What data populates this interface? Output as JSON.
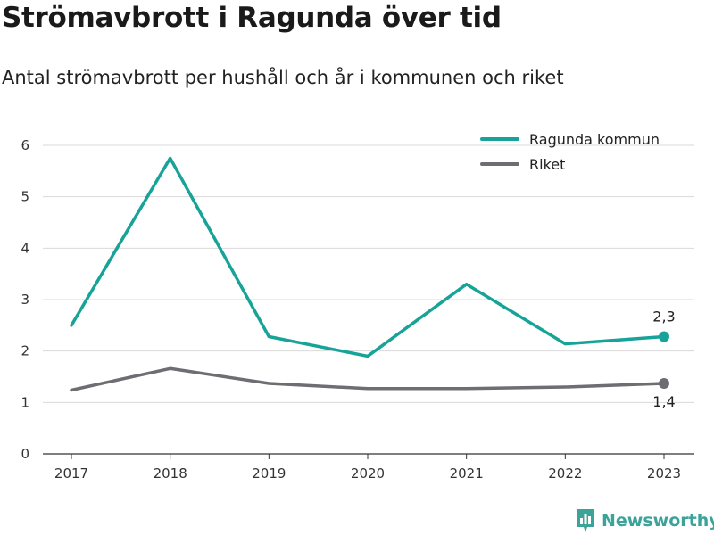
{
  "header": {
    "title": "Strömavbrott i Ragunda över tid",
    "subtitle": "Antal strömavbrott per hushåll och år i kommunen och riket"
  },
  "brand": {
    "name": "Newsworthy",
    "icon": "newsworthy-logo-icon",
    "color": "#3aa39a"
  },
  "chart_data": {
    "type": "line",
    "title": "Strömavbrott i Ragunda över tid",
    "subtitle": "Antal strömavbrott per hushåll och år i kommunen och riket",
    "xlabel": "",
    "ylabel": "",
    "x": [
      "2017",
      "2018",
      "2019",
      "2020",
      "2021",
      "2022",
      "2023"
    ],
    "ylim": [
      0,
      6
    ],
    "yticks": [
      "0",
      "1",
      "2",
      "3",
      "4",
      "5",
      "6"
    ],
    "grid": true,
    "legend_position": "top-right",
    "series": [
      {
        "name": "Ragunda kommun",
        "color": "#17a398",
        "values": [
          2.5,
          5.75,
          2.28,
          1.9,
          3.3,
          2.14,
          2.28
        ],
        "end_label": "2,3"
      },
      {
        "name": "Riket",
        "color": "#6e6d72",
        "values": [
          1.24,
          1.66,
          1.37,
          1.27,
          1.27,
          1.3,
          1.37
        ],
        "end_label": "1,4"
      }
    ]
  }
}
